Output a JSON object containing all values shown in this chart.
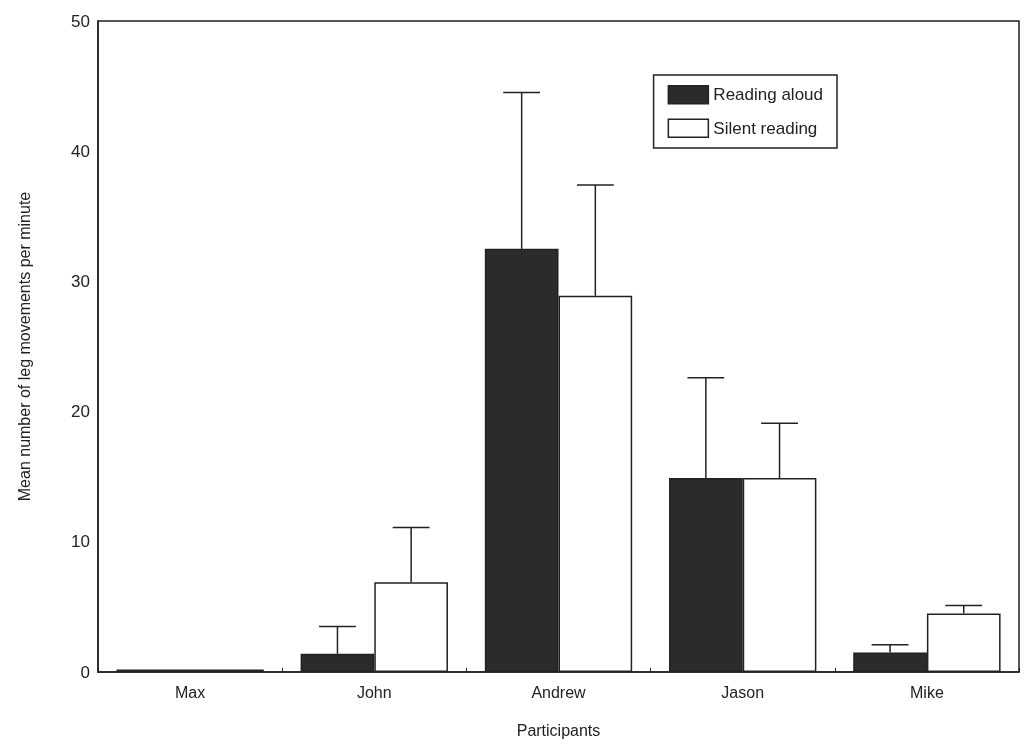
{
  "chart_data": {
    "type": "bar",
    "xlabel": "Participants",
    "ylabel": "Mean number of leg movements per minute",
    "categories": [
      "Max",
      "John",
      "Andrew",
      "Jason",
      "Mike"
    ],
    "series": [
      {
        "name": "Reading aloud",
        "color": "#2b2b2b",
        "values": [
          0.2,
          1.4,
          32.5,
          14.9,
          1.5
        ],
        "errors": [
          null,
          [
            1.4,
            3.5
          ],
          [
            32.5,
            44.5
          ],
          [
            14.9,
            22.6
          ],
          [
            1.5,
            2.1
          ]
        ]
      },
      {
        "name": "Silent reading",
        "color": "#ffffff",
        "values": [
          0.2,
          6.9,
          28.9,
          14.9,
          4.5
        ],
        "errors": [
          null,
          [
            6.9,
            11.1
          ],
          [
            28.9,
            37.4
          ],
          [
            14.9,
            19.1
          ],
          [
            4.5,
            5.1
          ]
        ]
      }
    ],
    "ylim": [
      0,
      50
    ],
    "yticks": [
      0,
      10,
      20,
      30,
      40,
      50
    ],
    "grid": false,
    "legend": "top right"
  }
}
